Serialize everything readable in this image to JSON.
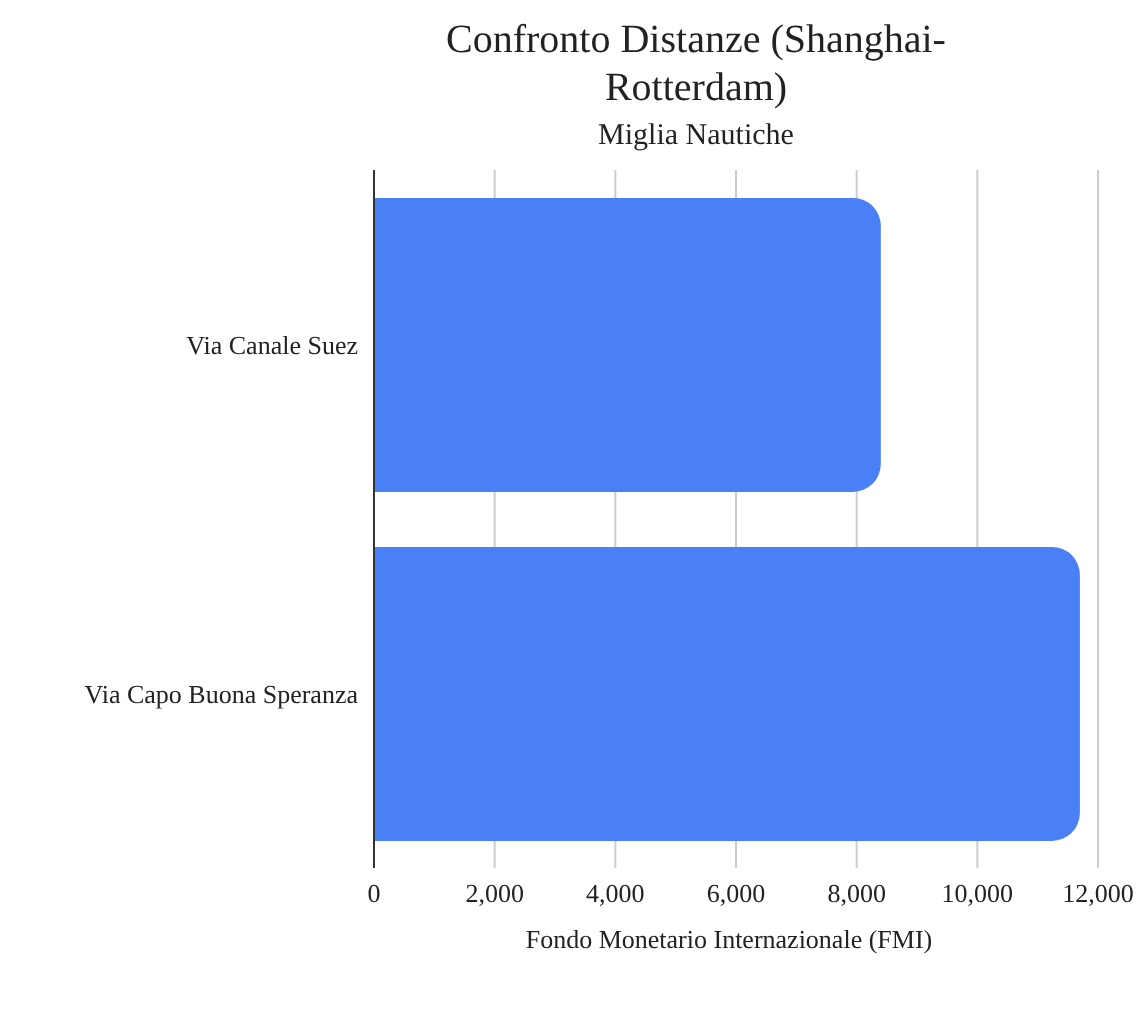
{
  "chart_data": {
    "type": "bar",
    "orientation": "horizontal",
    "title": "Confronto Distanze (Shanghai-Rotterdam)",
    "subtitle": "Miglia Nautiche",
    "xlabel": "Fondo Monetario Internazionale (FMI)",
    "categories": [
      "Via Canale Suez",
      "Via Capo Buona Speranza"
    ],
    "values": [
      8400,
      11700
    ],
    "color": "#4a80f5",
    "xlim": [
      0,
      12000
    ],
    "xticks": [
      {
        "value": 0,
        "label": "0"
      },
      {
        "value": 2000,
        "label": "2,000"
      },
      {
        "value": 4000,
        "label": "4,000"
      },
      {
        "value": 6000,
        "label": "6,000"
      },
      {
        "value": 8000,
        "label": "8,000"
      },
      {
        "value": 10000,
        "label": "10,000"
      },
      {
        "value": 12000,
        "label": "12,000"
      }
    ],
    "grid": "x",
    "legend": false
  }
}
